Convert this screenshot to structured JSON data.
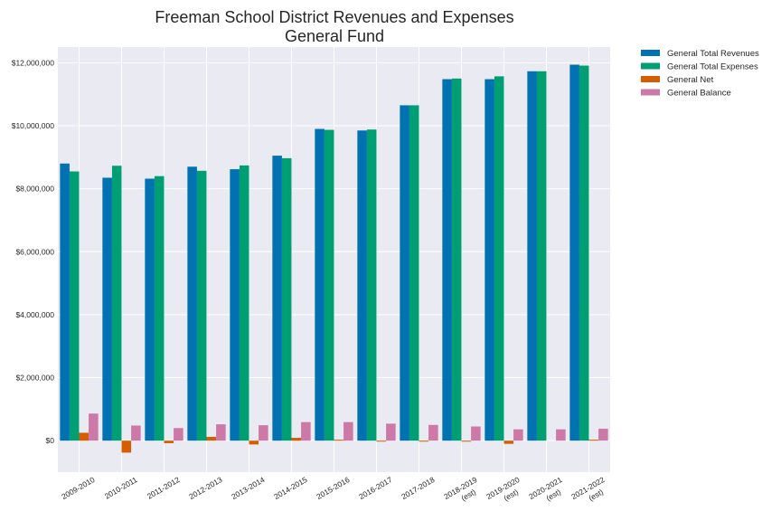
{
  "chart_data": {
    "type": "bar",
    "title": "Freeman School District Revenues and Expenses",
    "subtitle": "General Fund",
    "xlabel": "",
    "ylabel": "",
    "categories": [
      "2009-2010",
      "2010-2011",
      "2011-2012",
      "2012-2013",
      "2013-2014",
      "2014-2015",
      "2015-2016",
      "2016-2017",
      "2017-2018",
      "2018-2019\n(est)",
      "2019-2020\n(est)",
      "2020-2021\n(est)",
      "2021-2022\n(est)"
    ],
    "series": [
      {
        "name": "General Total Revenues",
        "color": "#0072b2",
        "values": [
          8800000,
          8350000,
          8320000,
          8700000,
          8620000,
          9050000,
          9900000,
          9850000,
          10650000,
          11480000,
          11480000,
          11730000,
          11940000
        ]
      },
      {
        "name": "General Total Expenses",
        "color": "#009e73",
        "values": [
          8550000,
          8730000,
          8400000,
          8570000,
          8740000,
          8970000,
          9870000,
          9880000,
          10650000,
          11500000,
          11570000,
          11730000,
          11910000
        ]
      },
      {
        "name": "General Net",
        "color": "#d55e00",
        "values": [
          250000,
          -380000,
          -80000,
          120000,
          -120000,
          90000,
          30000,
          -30000,
          -30000,
          -30000,
          -100000,
          0,
          30000
        ]
      },
      {
        "name": "General Balance",
        "color": "#cc79a7",
        "values": [
          860000,
          480000,
          400000,
          520000,
          490000,
          590000,
          590000,
          540000,
          500000,
          450000,
          360000,
          360000,
          380000
        ]
      }
    ],
    "ylim": [
      -1000000,
      12500000
    ],
    "yticks": [
      0,
      2000000,
      4000000,
      6000000,
      8000000,
      10000000,
      12000000
    ],
    "ytick_labels": [
      "$0",
      "$2,000,000",
      "$4,000,000",
      "$6,000,000",
      "$8,000,000",
      "$10,000,000",
      "$12,000,000"
    ],
    "grid": true,
    "legend_position": "outside-top-right",
    "background": "#eaeaf2"
  }
}
